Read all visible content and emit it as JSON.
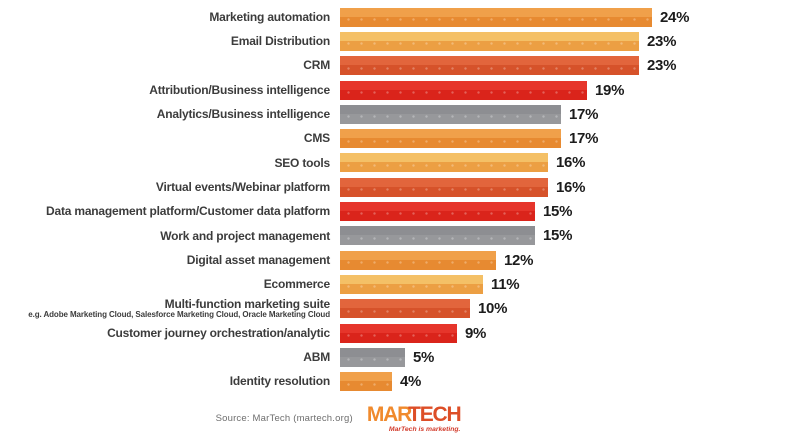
{
  "chart_data": {
    "type": "bar",
    "orientation": "horizontal",
    "unit": "%",
    "xlim": [
      0,
      26
    ],
    "grid": false,
    "legend": false,
    "categories": [
      "Marketing automation",
      "Email Distribution",
      "CRM",
      "Attribution/Business intelligence",
      "Analytics/Business intelligence",
      "CMS",
      "SEO tools",
      "Virtual events/Webinar platform",
      "Data management platform/Customer data platform",
      "Work and project management",
      "Digital asset management",
      "Ecommerce",
      "Multi-function marketing suite",
      "Customer journey orchestration/analytic",
      "ABM",
      "Identity resolution"
    ],
    "values": [
      24,
      23,
      23,
      19,
      17,
      17,
      16,
      16,
      15,
      15,
      12,
      11,
      10,
      9,
      5,
      4
    ],
    "items": [
      {
        "label": "Marketing automation",
        "sublabel": "",
        "value": 24,
        "display": "24%",
        "color": "orange"
      },
      {
        "label": "Email Distribution",
        "sublabel": "",
        "value": 23,
        "display": "23%",
        "color": "light_orange"
      },
      {
        "label": "CRM",
        "sublabel": "",
        "value": 23,
        "display": "23%",
        "color": "burnt_orange"
      },
      {
        "label": "Attribution/Business intelligence",
        "sublabel": "",
        "value": 19,
        "display": "19%",
        "color": "red"
      },
      {
        "label": "Analytics/Business intelligence",
        "sublabel": "",
        "value": 17,
        "display": "17%",
        "color": "gray"
      },
      {
        "label": "CMS",
        "sublabel": "",
        "value": 17,
        "display": "17%",
        "color": "orange"
      },
      {
        "label": "SEO tools",
        "sublabel": "",
        "value": 16,
        "display": "16%",
        "color": "light_orange"
      },
      {
        "label": "Virtual events/Webinar platform",
        "sublabel": "",
        "value": 16,
        "display": "16%",
        "color": "burnt_orange"
      },
      {
        "label": "Data management platform/Customer data platform",
        "sublabel": "",
        "value": 15,
        "display": "15%",
        "color": "red"
      },
      {
        "label": "Work and project management",
        "sublabel": "",
        "value": 15,
        "display": "15%",
        "color": "gray"
      },
      {
        "label": "Digital asset management",
        "sublabel": "",
        "value": 12,
        "display": "12%",
        "color": "orange"
      },
      {
        "label": "Ecommerce",
        "sublabel": "",
        "value": 11,
        "display": "11%",
        "color": "light_orange"
      },
      {
        "label": "Multi-function marketing suite",
        "sublabel": "e.g. Adobe Marketing Cloud, Salesforce Marketing Cloud, Oracle Marketing Cloud",
        "value": 10,
        "display": "10%",
        "color": "burnt_orange"
      },
      {
        "label": "Customer journey orchestration/analytic",
        "sublabel": "",
        "value": 9,
        "display": "9%",
        "color": "red"
      },
      {
        "label": "ABM",
        "sublabel": "",
        "value": 5,
        "display": "5%",
        "color": "gray"
      },
      {
        "label": "Identity resolution",
        "sublabel": "",
        "value": 4,
        "display": "4%",
        "color": "orange"
      }
    ],
    "palette": {
      "orange": {
        "top": "#F0A04A",
        "bottom": "#E78A31"
      },
      "light_orange": {
        "top": "#F4C066",
        "bottom": "#EC9F43"
      },
      "burnt_orange": {
        "top": "#E2653C",
        "bottom": "#D6522A"
      },
      "red": {
        "top": "#E6352B",
        "bottom": "#DA241B"
      },
      "gray": {
        "top": "#8D8E92",
        "bottom": "#97989B"
      }
    }
  },
  "footer": {
    "source": "Source: MarTech (martech.org)",
    "logo": {
      "part1": "MAR",
      "part2": "TECH",
      "tagline": "MarTech is marketing."
    }
  }
}
